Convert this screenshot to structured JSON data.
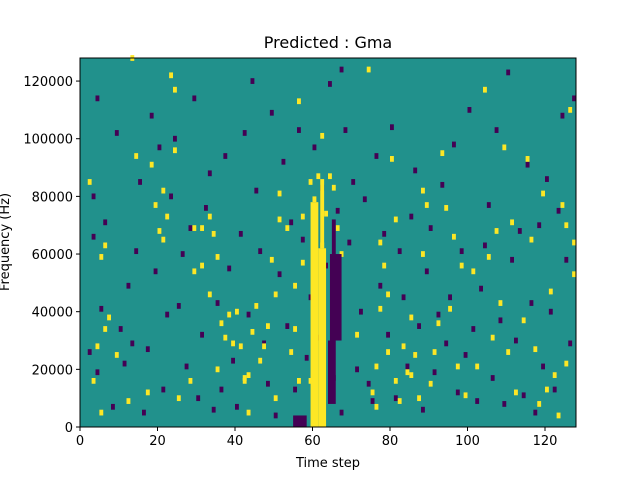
{
  "chart_data": {
    "type": "heatmap",
    "title": "Predicted : Gma",
    "xlabel": "Time step",
    "ylabel": "Frequency (Hz)",
    "xlim": [
      0,
      128
    ],
    "ylim": [
      0,
      128000
    ],
    "x_ticks": [
      0,
      20,
      40,
      60,
      80,
      100,
      120
    ],
    "y_ticks": [
      0,
      20000,
      40000,
      60000,
      80000,
      100000,
      120000
    ],
    "grid": false,
    "colormap": "viridis (3 levels)",
    "levels": [
      0,
      0.5,
      1
    ],
    "background_level": 0.5,
    "background_color": "#21918c",
    "low_color": "#440154",
    "high_color": "#fde725",
    "cell_freq_height_hz": 2000,
    "high_cells": [
      [
        5,
        4000
      ],
      [
        3,
        15000
      ],
      [
        4,
        27000
      ],
      [
        2,
        84000
      ],
      [
        6,
        62000
      ],
      [
        5,
        58000
      ],
      [
        6,
        33000
      ],
      [
        7,
        37000
      ],
      [
        9,
        24000
      ],
      [
        12,
        8000
      ],
      [
        13,
        127000
      ],
      [
        14,
        93000
      ],
      [
        17,
        11000
      ],
      [
        18,
        90000
      ],
      [
        19,
        76000
      ],
      [
        21,
        81000
      ],
      [
        22,
        72000
      ],
      [
        20,
        67000
      ],
      [
        21,
        64000
      ],
      [
        24,
        95000
      ],
      [
        24,
        116000
      ],
      [
        23,
        121000
      ],
      [
        25,
        9000
      ],
      [
        28,
        15000
      ],
      [
        29,
        53000
      ],
      [
        29,
        68000
      ],
      [
        31,
        55000
      ],
      [
        31,
        68000
      ],
      [
        33,
        45000
      ],
      [
        34,
        66000
      ],
      [
        33,
        72000
      ],
      [
        35,
        19000
      ],
      [
        35,
        58000
      ],
      [
        36,
        35000
      ],
      [
        37,
        30000
      ],
      [
        38,
        38000
      ],
      [
        39,
        28000
      ],
      [
        40,
        39000
      ],
      [
        41,
        27000
      ],
      [
        42,
        16000
      ],
      [
        42,
        15000
      ],
      [
        43,
        4000
      ],
      [
        43,
        17000
      ],
      [
        44,
        32000
      ],
      [
        45,
        41000
      ],
      [
        46,
        22000
      ],
      [
        47,
        27000
      ],
      [
        48,
        34000
      ],
      [
        49,
        57000
      ],
      [
        50,
        45000
      ],
      [
        50,
        9000
      ],
      [
        51,
        71000
      ],
      [
        51,
        80000
      ],
      [
        53,
        68000
      ],
      [
        54,
        25000
      ],
      [
        55,
        33000
      ],
      [
        55,
        48000
      ],
      [
        56,
        15000
      ],
      [
        56,
        112000
      ],
      [
        57,
        72000
      ],
      [
        57,
        56000
      ],
      [
        59,
        84000
      ],
      [
        59,
        15000
      ],
      [
        60,
        12000
      ],
      [
        60,
        78000
      ],
      [
        61,
        86000
      ],
      [
        62,
        62000
      ],
      [
        62,
        100000
      ],
      [
        63,
        73000
      ],
      [
        64,
        86000
      ],
      [
        65,
        82000
      ],
      [
        66,
        68000
      ],
      [
        67,
        59000
      ],
      [
        71,
        31000
      ],
      [
        74,
        123000
      ],
      [
        75,
        11000
      ],
      [
        76,
        6000
      ],
      [
        76,
        20000
      ],
      [
        77,
        40000
      ],
      [
        77,
        63000
      ],
      [
        78,
        55000
      ],
      [
        79,
        45000
      ],
      [
        79,
        25000
      ],
      [
        80,
        92000
      ],
      [
        81,
        71000
      ],
      [
        81,
        15000
      ],
      [
        82,
        8000
      ],
      [
        83,
        27000
      ],
      [
        84,
        18000
      ],
      [
        85,
        37000
      ],
      [
        85,
        17000
      ],
      [
        86,
        24000
      ],
      [
        87,
        9000
      ],
      [
        88,
        81000
      ],
      [
        88,
        59000
      ],
      [
        89,
        76000
      ],
      [
        90,
        14000
      ],
      [
        91,
        25000
      ],
      [
        92,
        35000
      ],
      [
        93,
        94000
      ],
      [
        94,
        75000
      ],
      [
        95,
        40000
      ],
      [
        96,
        65000
      ],
      [
        97,
        20000
      ],
      [
        98,
        55000
      ],
      [
        99,
        10000
      ],
      [
        101,
        53000
      ],
      [
        102,
        20000
      ],
      [
        104,
        116000
      ],
      [
        105,
        58000
      ],
      [
        106,
        30000
      ],
      [
        107,
        67000
      ],
      [
        108,
        42000
      ],
      [
        109,
        96000
      ],
      [
        110,
        25000
      ],
      [
        111,
        70000
      ],
      [
        112,
        11000
      ],
      [
        114,
        36000
      ],
      [
        115,
        92000
      ],
      [
        116,
        64000
      ],
      [
        117,
        26000
      ],
      [
        118,
        7000
      ],
      [
        119,
        80000
      ],
      [
        120,
        12000
      ],
      [
        121,
        46000
      ],
      [
        122,
        17000
      ],
      [
        123,
        3000
      ],
      [
        124,
        76000
      ],
      [
        125,
        69000
      ],
      [
        125,
        21000
      ],
      [
        126,
        109000
      ],
      [
        127,
        52000
      ],
      [
        127,
        63000
      ]
    ],
    "low_cells": [
      [
        2,
        25000
      ],
      [
        3,
        65000
      ],
      [
        3,
        79000
      ],
      [
        4,
        18000
      ],
      [
        4,
        113000
      ],
      [
        5,
        40000
      ],
      [
        6,
        70000
      ],
      [
        8,
        6000
      ],
      [
        9,
        101000
      ],
      [
        10,
        33000
      ],
      [
        11,
        21000
      ],
      [
        12,
        48000
      ],
      [
        13,
        28000
      ],
      [
        14,
        60000
      ],
      [
        15,
        84000
      ],
      [
        16,
        4000
      ],
      [
        17,
        26000
      ],
      [
        18,
        107000
      ],
      [
        19,
        53000
      ],
      [
        20,
        96000
      ],
      [
        21,
        12000
      ],
      [
        22,
        38000
      ],
      [
        23,
        79000
      ],
      [
        24,
        99000
      ],
      [
        25,
        41000
      ],
      [
        26,
        59000
      ],
      [
        27,
        20000
      ],
      [
        28,
        68000
      ],
      [
        29,
        113000
      ],
      [
        30,
        9000
      ],
      [
        31,
        31000
      ],
      [
        32,
        75000
      ],
      [
        33,
        87000
      ],
      [
        34,
        5000
      ],
      [
        35,
        42000
      ],
      [
        36,
        12000
      ],
      [
        37,
        93000
      ],
      [
        38,
        54000
      ],
      [
        39,
        22000
      ],
      [
        40,
        6000
      ],
      [
        41,
        66000
      ],
      [
        42,
        101000
      ],
      [
        43,
        38000
      ],
      [
        44,
        119000
      ],
      [
        45,
        81000
      ],
      [
        46,
        60000
      ],
      [
        47,
        28000
      ],
      [
        48,
        14000
      ],
      [
        49,
        108000
      ],
      [
        50,
        3000
      ],
      [
        51,
        52000
      ],
      [
        52,
        91000
      ],
      [
        53,
        34000
      ],
      [
        54,
        70000
      ],
      [
        55,
        12000
      ],
      [
        56,
        102000
      ],
      [
        57,
        64000
      ],
      [
        58,
        23000
      ],
      [
        59,
        44000
      ],
      [
        60,
        96000
      ],
      [
        61,
        30000
      ],
      [
        62,
        82000
      ],
      [
        63,
        55000
      ],
      [
        64,
        118000
      ],
      [
        65,
        16000
      ],
      [
        66,
        74000
      ],
      [
        67,
        4000
      ],
      [
        67,
        123000
      ],
      [
        68,
        102000
      ],
      [
        69,
        63000
      ],
      [
        70,
        84000
      ],
      [
        71,
        19000
      ],
      [
        72,
        39000
      ],
      [
        73,
        78000
      ],
      [
        74,
        14000
      ],
      [
        75,
        8000
      ],
      [
        76,
        93000
      ],
      [
        77,
        48000
      ],
      [
        78,
        66000
      ],
      [
        79,
        31000
      ],
      [
        80,
        103000
      ],
      [
        81,
        9000
      ],
      [
        82,
        60000
      ],
      [
        83,
        44000
      ],
      [
        84,
        20000
      ],
      [
        85,
        72000
      ],
      [
        86,
        88000
      ],
      [
        87,
        34000
      ],
      [
        88,
        5000
      ],
      [
        89,
        53000
      ],
      [
        90,
        68000
      ],
      [
        91,
        18000
      ],
      [
        92,
        38000
      ],
      [
        93,
        83000
      ],
      [
        94,
        28000
      ],
      [
        95,
        44000
      ],
      [
        96,
        97000
      ],
      [
        97,
        11000
      ],
      [
        98,
        60000
      ],
      [
        99,
        24000
      ],
      [
        100,
        109000
      ],
      [
        101,
        33000
      ],
      [
        102,
        8000
      ],
      [
        103,
        47000
      ],
      [
        104,
        62000
      ],
      [
        105,
        76000
      ],
      [
        106,
        16000
      ],
      [
        107,
        102000
      ],
      [
        108,
        36000
      ],
      [
        109,
        7000
      ],
      [
        110,
        122000
      ],
      [
        111,
        57000
      ],
      [
        112,
        29000
      ],
      [
        113,
        67000
      ],
      [
        114,
        10000
      ],
      [
        115,
        90000
      ],
      [
        116,
        42000
      ],
      [
        117,
        4000
      ],
      [
        118,
        69000
      ],
      [
        119,
        20000
      ],
      [
        120,
        85000
      ],
      [
        121,
        39000
      ],
      [
        122,
        12000
      ],
      [
        123,
        74000
      ],
      [
        124,
        107000
      ],
      [
        125,
        57000
      ],
      [
        126,
        28000
      ],
      [
        127,
        113000
      ]
    ],
    "high_bands": [
      {
        "x_from": 59.5,
        "x_to": 61.5,
        "y_from": 0,
        "y_to": 78000
      },
      {
        "x_from": 61.5,
        "x_to": 63.5,
        "y_from": 0,
        "y_to": 62000
      },
      {
        "x_from": 62,
        "x_to": 63,
        "y_from": 62000,
        "y_to": 86000
      }
    ],
    "low_bands": [
      {
        "x_from": 55,
        "x_to": 58.5,
        "y_from": 0,
        "y_to": 4000
      },
      {
        "x_from": 64.5,
        "x_to": 67.5,
        "y_from": 30000,
        "y_to": 60000
      },
      {
        "x_from": 64,
        "x_to": 66,
        "y_from": 8000,
        "y_to": 30000
      },
      {
        "x_from": 65,
        "x_to": 66,
        "y_from": 60000,
        "y_to": 72000
      }
    ]
  }
}
